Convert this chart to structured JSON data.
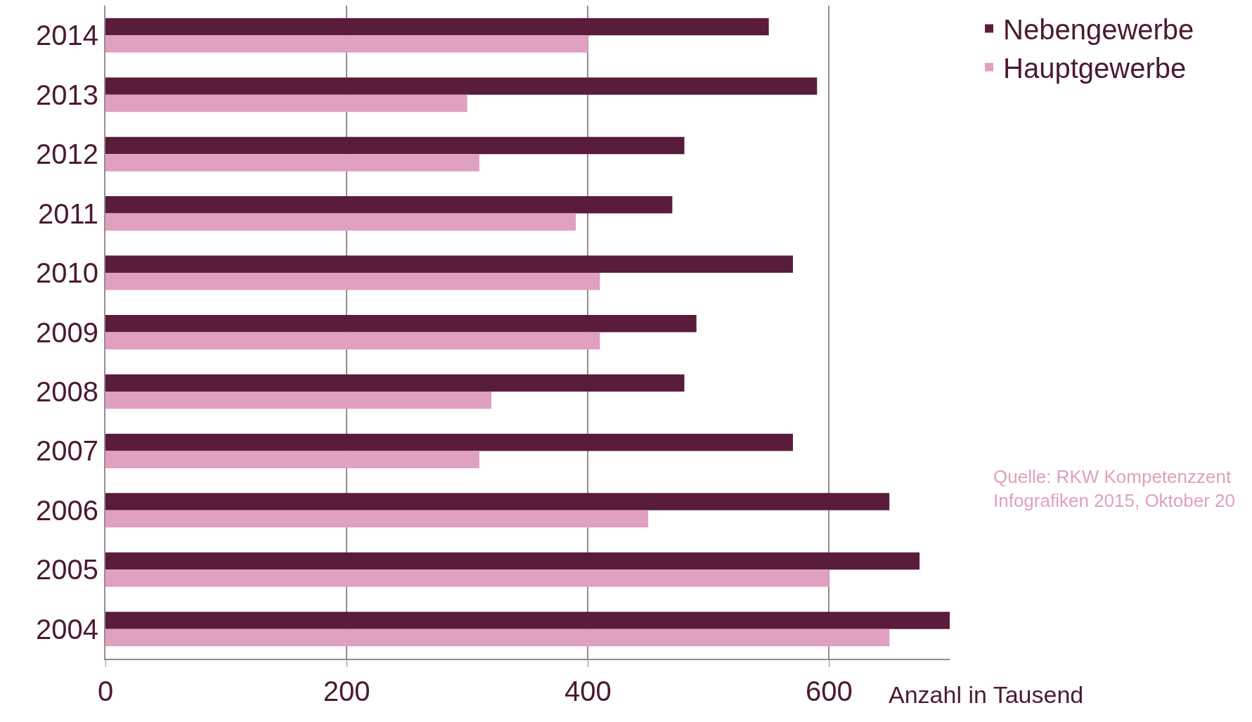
{
  "chart_data": {
    "type": "bar",
    "orientation": "horizontal",
    "categories": [
      "2014",
      "2013",
      "2012",
      "2011",
      "2010",
      "2009",
      "2008",
      "2007",
      "2006",
      "2005",
      "2004"
    ],
    "series": [
      {
        "name": "Nebengewerbe",
        "color": "#5a1c3b",
        "values": [
          550,
          590,
          480,
          470,
          570,
          490,
          480,
          570,
          650,
          675,
          700
        ]
      },
      {
        "name": "Hauptgewerbe",
        "color": "#e0a0c0",
        "values": [
          400,
          300,
          310,
          390,
          410,
          410,
          320,
          310,
          450,
          600,
          650
        ]
      }
    ],
    "xlim": [
      0,
      700
    ],
    "xticks": [
      0,
      200,
      400,
      600
    ],
    "xlabel": "Anzahl in Tausend",
    "grid": "x",
    "legend": "top right",
    "annotations": [
      "Quelle: RKW Kompetenzzent\nInfografiken 2015, Oktober 20"
    ]
  }
}
